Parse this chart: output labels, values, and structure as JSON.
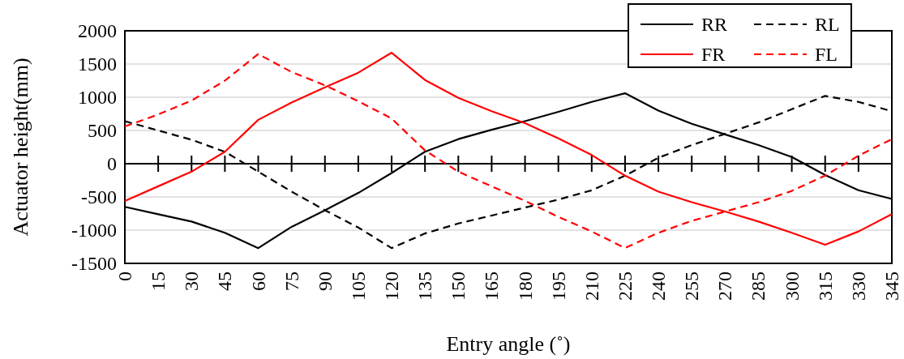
{
  "chart_data": {
    "type": "line",
    "xlabel": "Entry angle (˚)",
    "ylabel": "Actuator height(mm)",
    "categories": [
      "0",
      "15",
      "30",
      "45",
      "60",
      "75",
      "90",
      "105",
      "120",
      "135",
      "150",
      "165",
      "180",
      "195",
      "210",
      "225",
      "240",
      "255",
      "270",
      "285",
      "300",
      "315",
      "330",
      "345"
    ],
    "ylim": [
      -1500,
      2000
    ],
    "yticks": [
      -1500,
      -1000,
      -500,
      0,
      500,
      1000,
      1500,
      2000
    ],
    "grid": "y",
    "legend": "top right",
    "marker": "none",
    "series": [
      {
        "name": "RR",
        "color": "#000000",
        "line_style": "solid",
        "values": [
          -650,
          -760,
          -870,
          -1040,
          -1270,
          -950,
          -700,
          -440,
          -140,
          180,
          370,
          510,
          640,
          780,
          930,
          1060,
          800,
          600,
          440,
          280,
          100,
          -170,
          -400,
          -530
        ]
      },
      {
        "name": "RL",
        "color": "#000000",
        "line_style": "dashed",
        "values": [
          640,
          500,
          360,
          180,
          -120,
          -420,
          -700,
          -960,
          -1270,
          -1050,
          -900,
          -780,
          -660,
          -540,
          -400,
          -180,
          90,
          280,
          450,
          620,
          820,
          1020,
          930,
          790
        ]
      },
      {
        "name": "FR",
        "color": "#ff0000",
        "line_style": "solid",
        "values": [
          -560,
          -340,
          -120,
          180,
          660,
          920,
          1150,
          1370,
          1670,
          1260,
          990,
          790,
          610,
          380,
          130,
          -180,
          -420,
          -580,
          -720,
          -870,
          -1040,
          -1220,
          -1020,
          -760
        ]
      },
      {
        "name": "FL",
        "color": "#ff0000",
        "line_style": "dashed",
        "values": [
          560,
          740,
          950,
          1250,
          1650,
          1380,
          1180,
          940,
          680,
          200,
          -120,
          -340,
          -560,
          -800,
          -1020,
          -1270,
          -1040,
          -860,
          -720,
          -580,
          -410,
          -180,
          120,
          370
        ]
      }
    ]
  }
}
